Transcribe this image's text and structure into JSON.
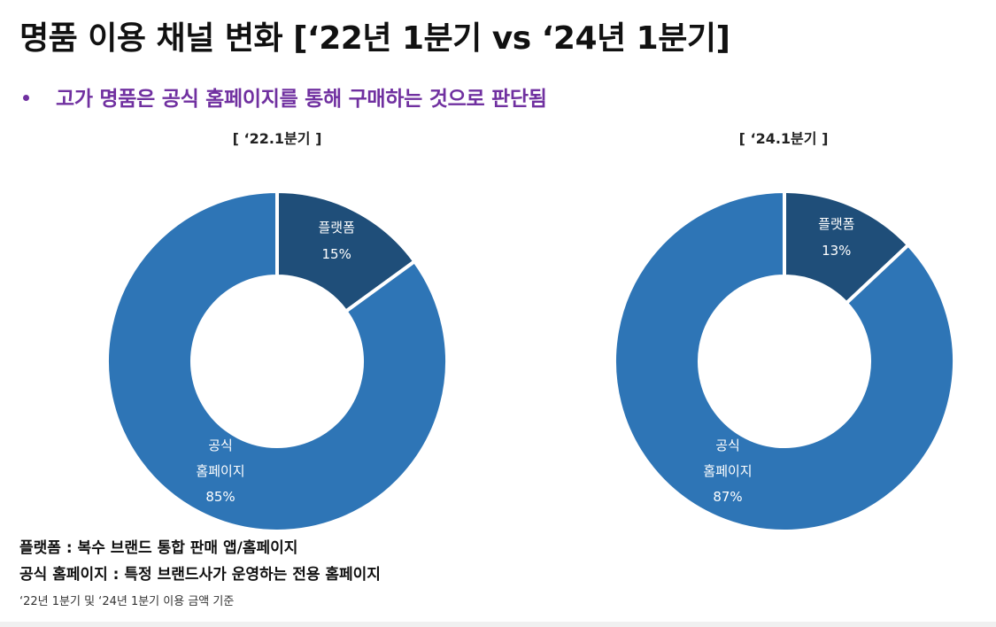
{
  "title": "명품 이용 채널 변화 [‘22년 1분기 vs ‘24년 1분기]",
  "subtitle": "고가 명품은 공식 홈페이지를 통해 구매하는 것으로 판단됨",
  "colors": {
    "accent_purple": "#7030a0",
    "official": "#2e75b6",
    "platform": "#1f4e79",
    "label_text": "#ffffff"
  },
  "chart_data": [
    {
      "type": "pie",
      "title": "[ ‘22.1분기 ]",
      "slices": [
        {
          "name": "플랫폼",
          "label_lines": [
            "플랫폼"
          ],
          "value": 15,
          "value_label": "15%"
        },
        {
          "name": "공식 홈페이지",
          "label_lines": [
            "공식",
            "홈페이지"
          ],
          "value": 85,
          "value_label": "85%"
        }
      ]
    },
    {
      "type": "pie",
      "title": "[ ‘24.1분기 ]",
      "slices": [
        {
          "name": "플랫폼",
          "label_lines": [
            "플랫폼"
          ],
          "value": 13,
          "value_label": "13%"
        },
        {
          "name": "공식 홈페이지",
          "label_lines": [
            "공식",
            "홈페이지"
          ],
          "value": 87,
          "value_label": "87%"
        }
      ]
    }
  ],
  "notes": {
    "line1": "플랫폼 : 복수 브랜드 통합 판매 앱/홈페이지",
    "line2": "공식 홈페이지 : 특정 브랜드사가 운영하는 전용 홈페이지",
    "footnote": "‘22년 1분기 및 ‘24년 1분기 이용 금액 기준"
  }
}
